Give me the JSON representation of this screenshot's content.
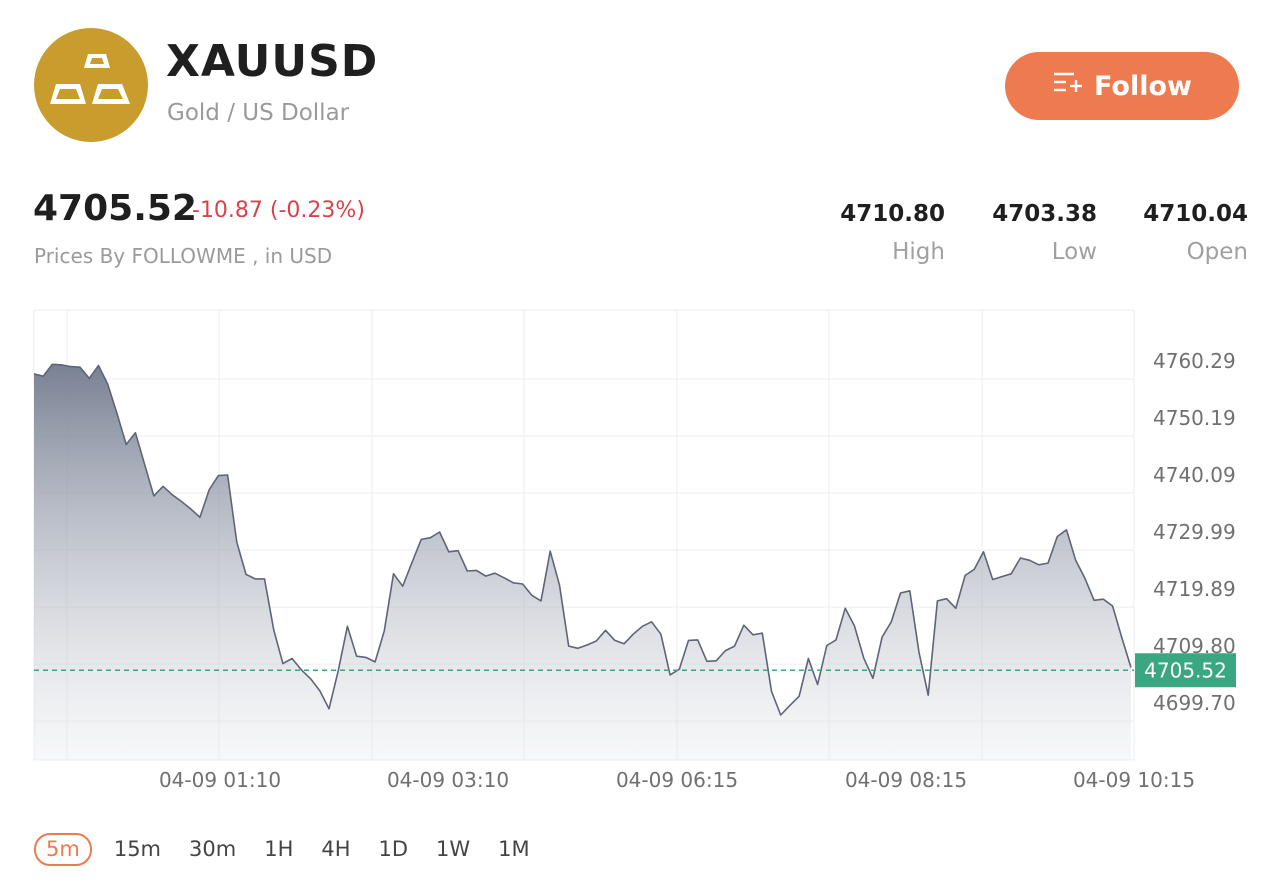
{
  "header": {
    "symbol": "XAUUSD",
    "name": "Gold / US Dollar",
    "logo_icon": "gold-bars-icon",
    "follow_label": "Follow",
    "follow_icon": "follow-list-icon"
  },
  "quote": {
    "price": "4705.52",
    "change": "-10.87 (-0.23%)",
    "source": "Prices By FOLLOWME , in USD",
    "high_value": "4710.80",
    "high_label": "High",
    "low_value": "4703.38",
    "low_label": "Low",
    "open_value": "4710.04",
    "open_label": "Open"
  },
  "colors": {
    "accent": "#ee7a50",
    "negative": "#d8434b",
    "current_price": "#3aa682",
    "line": "#5d6577",
    "logo": "#c99c2e"
  },
  "timeframes": {
    "active": "5m",
    "items": [
      "5m",
      "15m",
      "30m",
      "1H",
      "4H",
      "1D",
      "1W",
      "1M"
    ]
  },
  "chart_data": {
    "type": "area",
    "current_price": 4705.52,
    "current_price_label": "4705.52",
    "y_ticks": [
      "4760.29",
      "4750.19",
      "4740.09",
      "4729.99",
      "4719.89",
      "4709.80",
      "4699.70"
    ],
    "x_ticks": [
      "04-09 01:10",
      "04-09 03:10",
      "04-09 06:15",
      "04-09 08:15",
      "04-09 10:15"
    ],
    "ylim": [
      4690.0,
      4767.0
    ],
    "grid": true,
    "legend": "none",
    "values": [
      4758.0,
      4757.6,
      4759.7,
      4759.6,
      4759.3,
      4759.2,
      4757.2,
      4759.5,
      4756.2,
      4751.0,
      4745.5,
      4747.6,
      4742.0,
      4736.4,
      4738.1,
      4736.6,
      4735.4,
      4734.1,
      4732.6,
      4737.5,
      4740.0,
      4740.1,
      4728.2,
      4722.5,
      4721.7,
      4721.7,
      4712.7,
      4706.7,
      4707.6,
      4705.6,
      4704.0,
      4701.9,
      4698.7,
      4705.4,
      4713.3,
      4708.0,
      4707.8,
      4707.0,
      4712.5,
      4722.6,
      4720.4,
      4724.6,
      4728.7,
      4729.0,
      4730.0,
      4726.5,
      4726.7,
      4723.1,
      4723.2,
      4722.2,
      4722.7,
      4721.9,
      4721.0,
      4720.8,
      4718.8,
      4717.8,
      4726.6,
      4720.6,
      4709.8,
      4709.4,
      4710.0,
      4710.7,
      4712.6,
      4710.8,
      4710.2,
      4711.9,
      4713.3,
      4714.1,
      4711.9,
      4704.7,
      4705.7,
      4710.8,
      4710.9,
      4707.1,
      4707.2,
      4709.0,
      4709.8,
      4713.5,
      4711.8,
      4712.1,
      4701.8,
      4697.6,
      4699.3,
      4700.9,
      4707.6,
      4703.0,
      4709.9,
      4710.9,
      4716.5,
      4713.4,
      4707.7,
      4704.1,
      4711.4,
      4714.1,
      4719.2,
      4719.6,
      4708.7,
      4701.1,
      4717.8,
      4718.2,
      4716.5,
      4722.3,
      4723.4,
      4726.5,
      4721.6,
      4722.1,
      4722.6,
      4725.4,
      4725.0,
      4724.2,
      4724.5,
      4729.2,
      4730.4,
      4725.0,
      4721.8,
      4717.9,
      4718.1,
      4716.9,
      4711.3,
      4706.0
    ]
  }
}
